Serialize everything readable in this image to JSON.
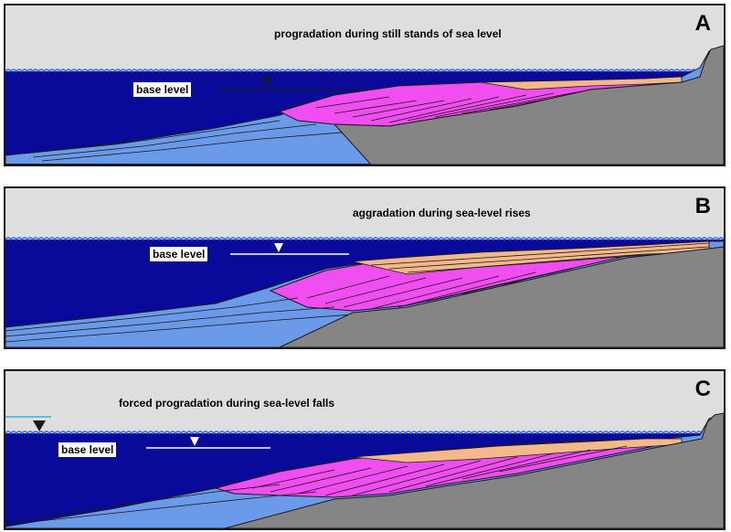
{
  "panels": [
    {
      "letter": "A",
      "caption": "progradation during still stands of sea level",
      "base_label": "base level"
    },
    {
      "letter": "B",
      "caption": "aggradation during sea-level rises",
      "base_label": "base level"
    },
    {
      "letter": "C",
      "caption": "forced progradation during sea-level falls",
      "base_label": "base level"
    }
  ],
  "colors": {
    "sky": "#dedede",
    "sea": "#0a0a9a",
    "bedrock": "#858585",
    "prodelta": "#6a9ae8",
    "foreset": "#f04ef0",
    "topset": "#f4b98a",
    "outline": "#1a1a1a"
  }
}
